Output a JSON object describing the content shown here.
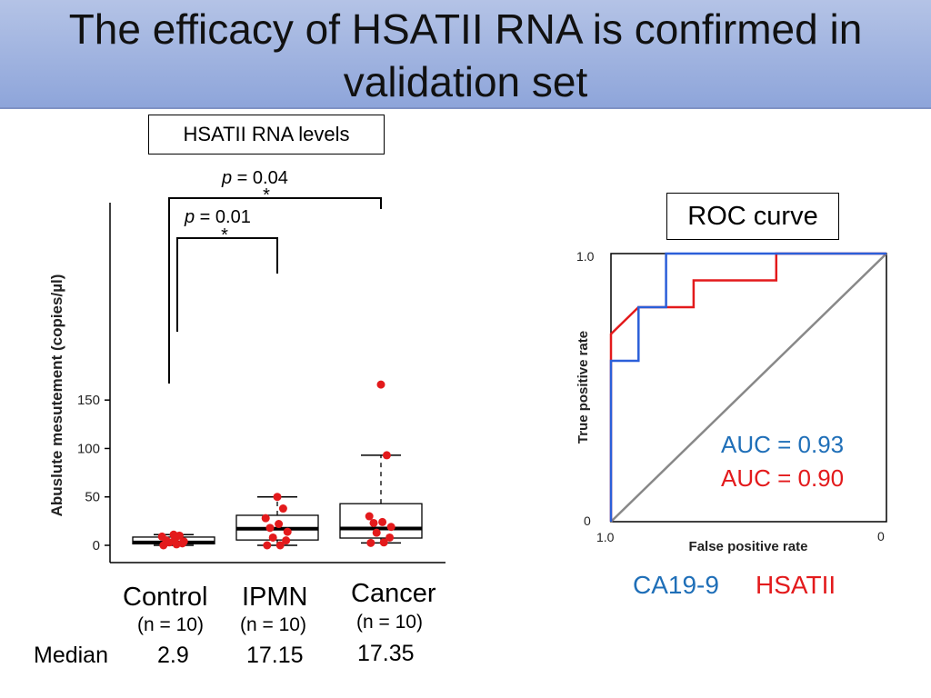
{
  "slide": {
    "title_line1": "The efficacy of HSATII RNA is confirmed in",
    "title_line2": "validation set",
    "box_label": "HSATII RNA levels",
    "roc_label": "ROC curve",
    "median_label": "Median"
  },
  "colors": {
    "red": "#e31a1c",
    "blue": "#2b5fd9",
    "auc_blue": "#1f6fb8",
    "auc_red": "#e31a1c",
    "diag": "#888888"
  },
  "chart_data": [
    {
      "type": "box",
      "ylabel": "Abuslute mesutement (copies/µl)",
      "ylim": [
        -5,
        175
      ],
      "yticks": [
        0,
        50,
        100,
        150
      ],
      "categories": [
        "Control",
        "IPMN",
        "Cancer"
      ],
      "n_labels": [
        "(n = 10)",
        "(n = 10)",
        "(n = 10)"
      ],
      "medians_text": [
        "2.9",
        "17.15",
        "17.35"
      ],
      "boxes": [
        {
          "q1": 1.5,
          "median": 2.9,
          "q3": 8.5,
          "whisker_low": 0,
          "whisker_high": 11
        },
        {
          "q1": 5.5,
          "median": 17.15,
          "q3": 31,
          "whisker_low": 0,
          "whisker_high": 50
        },
        {
          "q1": 7.5,
          "median": 17.35,
          "q3": 43,
          "whisker_low": 2.5,
          "whisker_high": 93
        }
      ],
      "points": [
        [
          0,
          1,
          2,
          3,
          4,
          5,
          7,
          9,
          10,
          11
        ],
        [
          0,
          0,
          5,
          8,
          14,
          18,
          22,
          28,
          38,
          50
        ],
        [
          2.5,
          3,
          8,
          13,
          19,
          23,
          24,
          30,
          93,
          166
        ]
      ],
      "comparisons": [
        {
          "from": 0,
          "to": 1,
          "p_prefix": "p",
          "p_text": " = 0.01",
          "mark": "*"
        },
        {
          "from": 0,
          "to": 2,
          "p_prefix": "p",
          "p_text": " = 0.04",
          "mark": "*"
        }
      ]
    },
    {
      "type": "line",
      "xlabel": "False positive rate",
      "ylabel": "True positive rate",
      "x_tick_left": "1.0",
      "x_tick_right": "0",
      "y_tick_top": "1.0",
      "y_tick_bottom": "0",
      "series": [
        {
          "name": "CA19-9",
          "color": "#2b5fd9",
          "auc": "AUC = 0.93",
          "points": [
            [
              0,
              0
            ],
            [
              0,
              0.6
            ],
            [
              0.1,
              0.6
            ],
            [
              0.1,
              0.8
            ],
            [
              0.2,
              0.8
            ],
            [
              0.2,
              1
            ],
            [
              1,
              1
            ]
          ]
        },
        {
          "name": "HSATII",
          "color": "#e31a1c",
          "auc": "AUC = 0.90",
          "points": [
            [
              0,
              0
            ],
            [
              0,
              0.7
            ],
            [
              0.1,
              0.8
            ],
            [
              0.3,
              0.8
            ],
            [
              0.3,
              0.9
            ],
            [
              0.6,
              0.9
            ],
            [
              0.6,
              1
            ],
            [
              1,
              1
            ]
          ]
        }
      ]
    }
  ]
}
